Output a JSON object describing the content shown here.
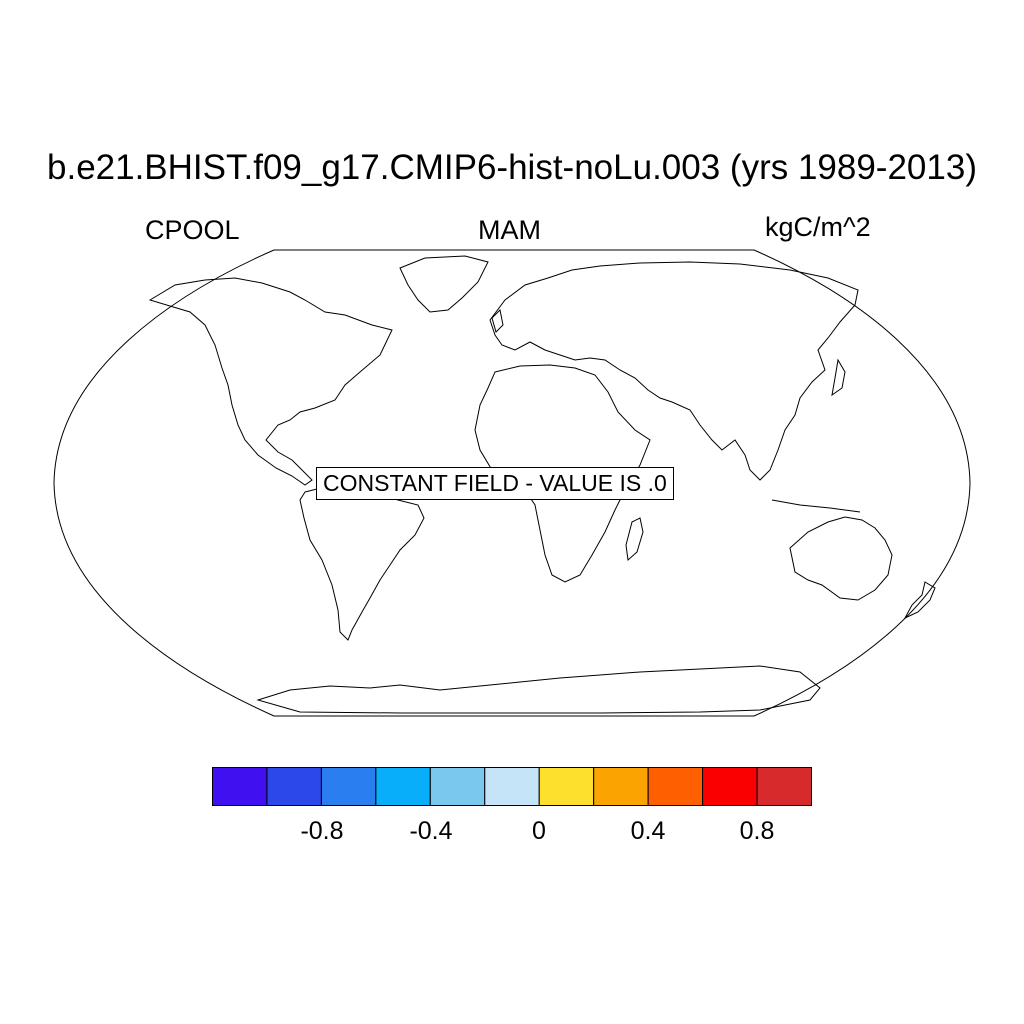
{
  "header": {
    "title": "b.e21.BHIST.f09_g17.CMIP6-hist-noLu.003 (yrs 1989-2013)",
    "left_label": "CPOOL",
    "center_label": "MAM",
    "right_label": "kgC/m^2"
  },
  "map": {
    "projection": "Robinson",
    "message": "CONSTANT FIELD - VALUE IS .0",
    "coastline_color": "#000000",
    "background_color": "#ffffff"
  },
  "colorbar": {
    "colors": [
      "#4010f0",
      "#2c48e8",
      "#2a7eef",
      "#08aef9",
      "#7ac8ee",
      "#c6e4f8",
      "#fde02e",
      "#fba300",
      "#fe5f00",
      "#fb0000",
      "#d62a2c"
    ],
    "tick_labels": [
      "-0.8",
      "-0.4",
      "0",
      "0.4",
      "0.8"
    ]
  }
}
